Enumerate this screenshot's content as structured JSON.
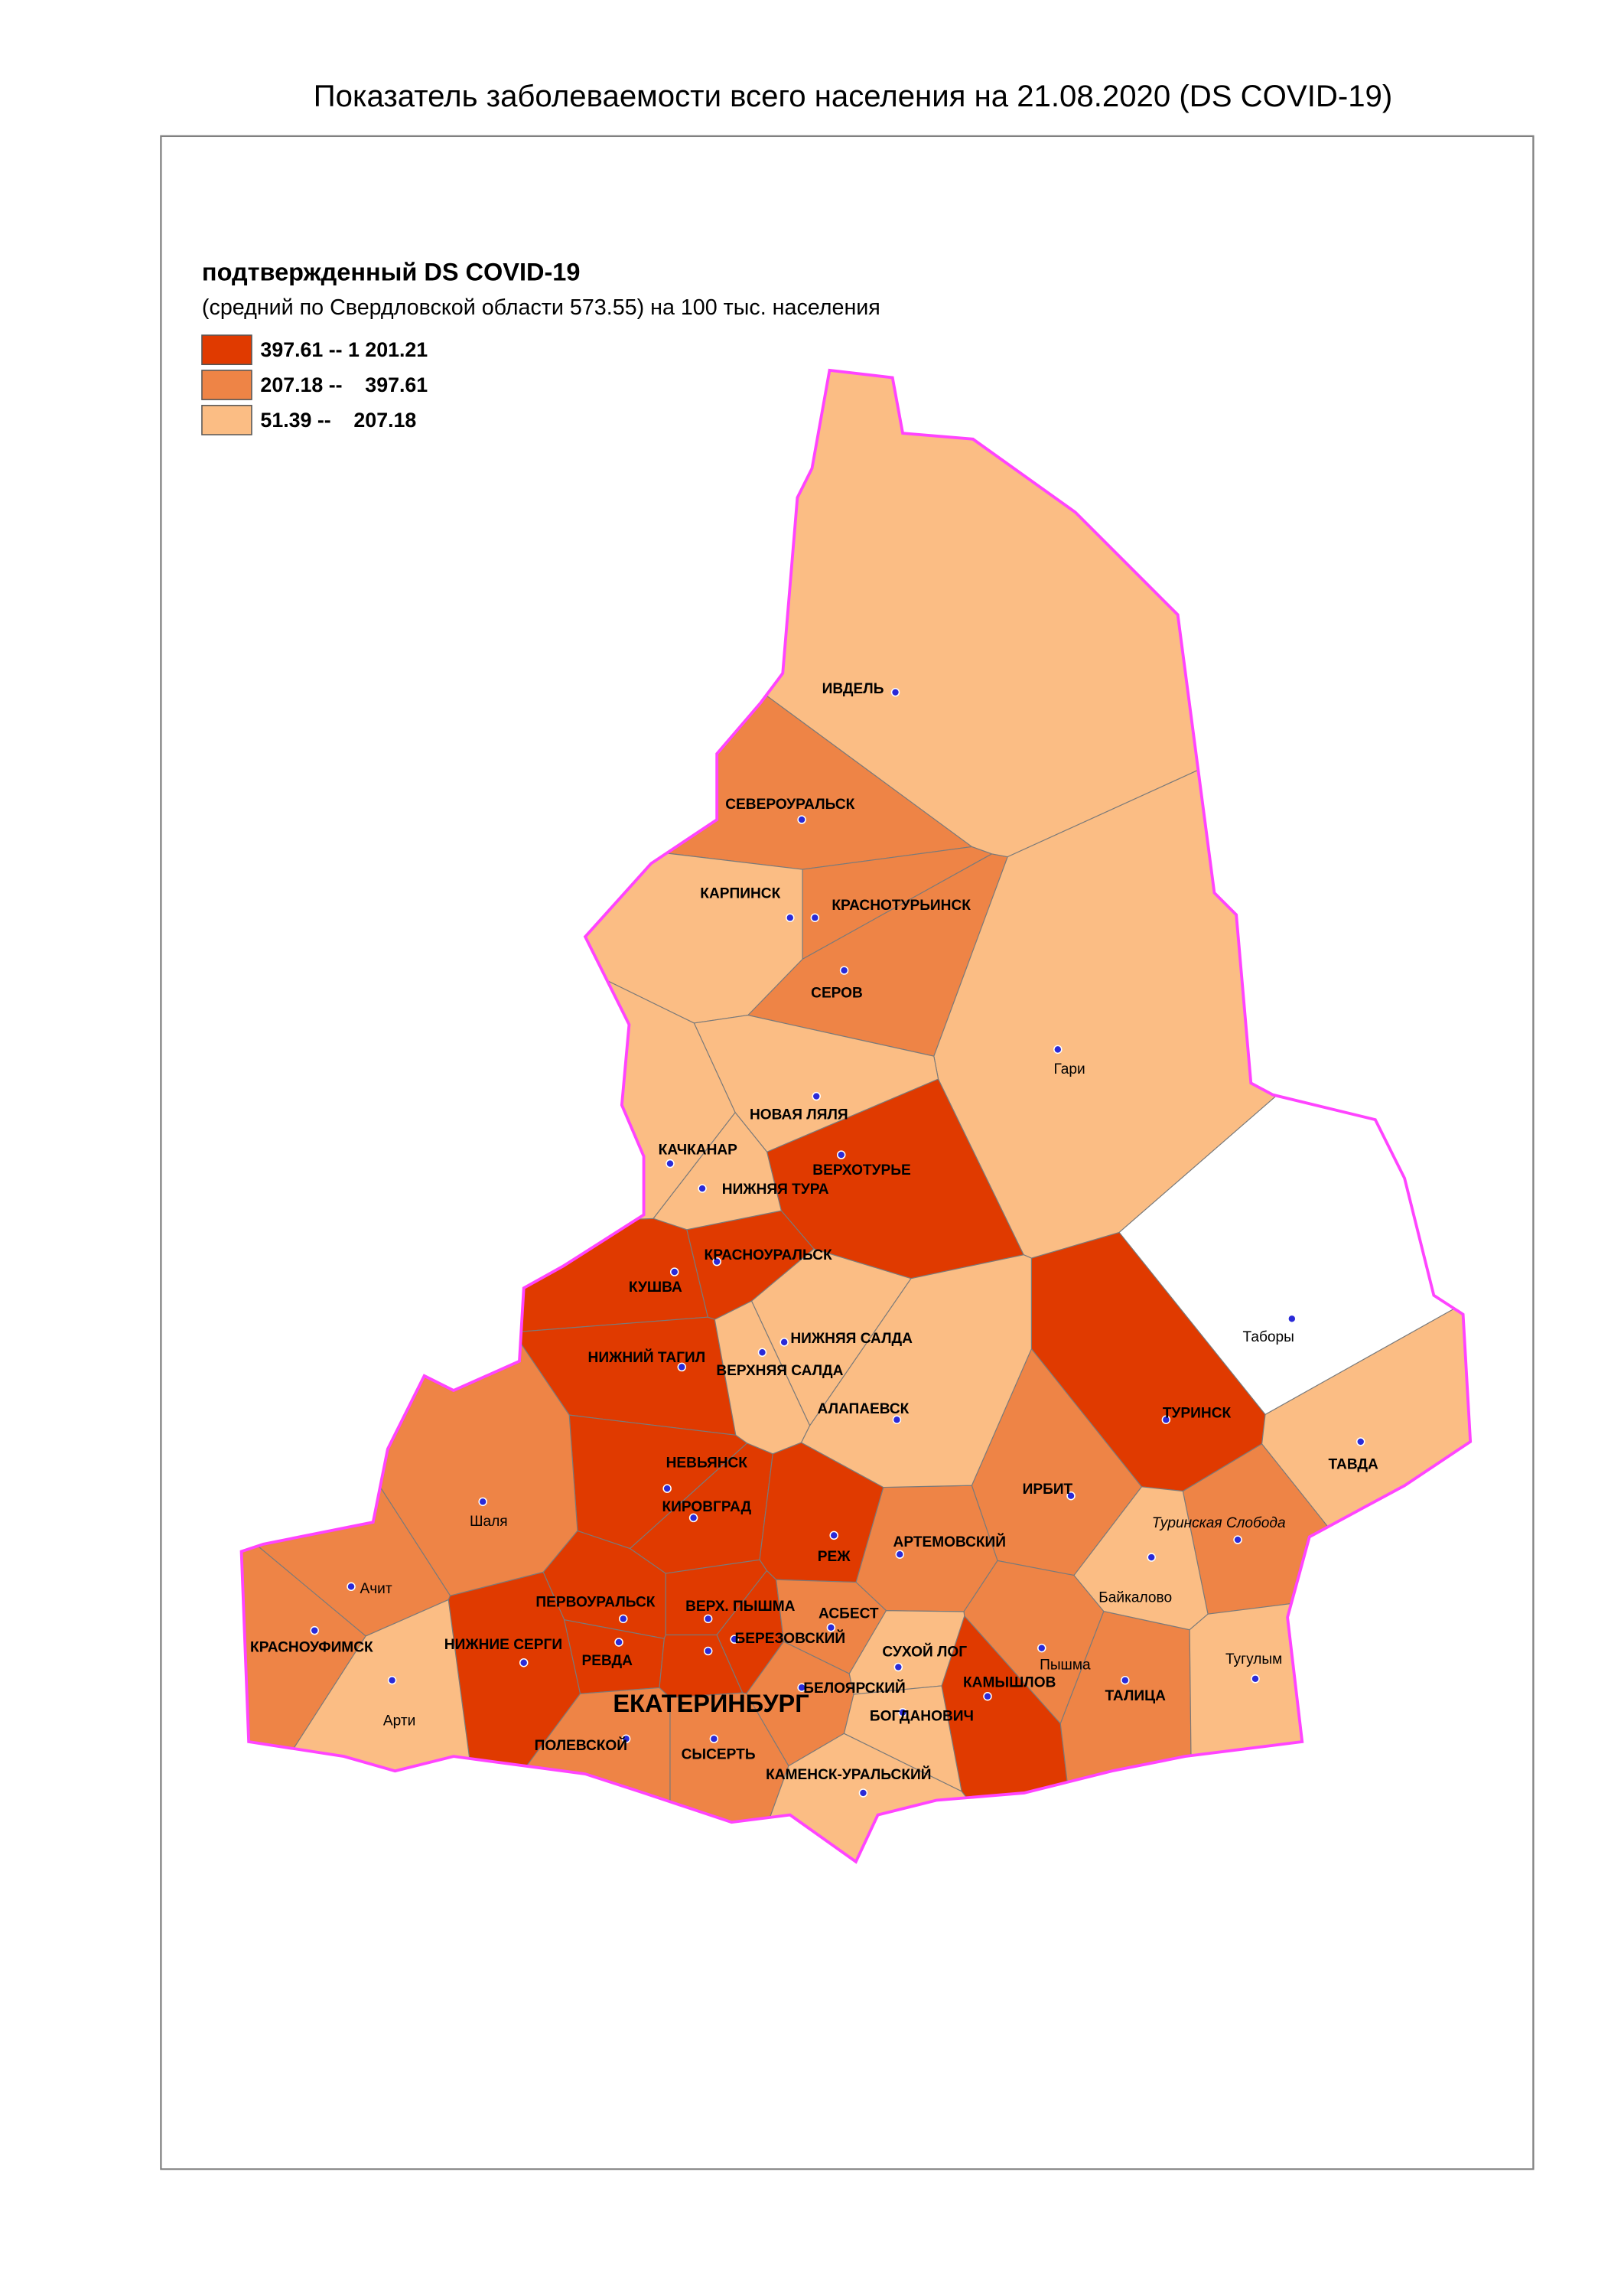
{
  "title": "Показатель заболеваемости всего населения  на 21.08.2020 (DS  COVID-19)",
  "legend": {
    "title": "подтвержденный DS  COVID-19",
    "subtitle": "(средний по Свердловской области 573.55) на 100 тыс. населения",
    "classes": [
      {
        "label": "397.61 -- 1 201.21",
        "color": "#e03a00",
        "places": [
          "ВЕРХОТУРЬЕ",
          "КРАСНОУРАЛЬСК",
          "КУШВА",
          "НИЖНИЙ ТАГИЛ",
          "ТУРИНСК",
          "НЕВЬЯНСК",
          "КИРОВГРАД",
          "РЕЖ",
          "ПЕРВОУРАЛЬСК",
          "ВЕРХ. ПЫШМА",
          "БЕРЕЗОВСКИЙ",
          "НИЖНИЕ СЕРГИ",
          "РЕВДА",
          "ЕКАТЕРИНБУРГ",
          "КАМЫШЛОВ"
        ]
      },
      {
        "label": "207.18 --    397.61",
        "color": "#ee8446",
        "places": [
          "СЕВЕРОУРАЛЬСК",
          "КРАСНОТУРЬИНСК",
          "СЕРОВ",
          "Шаля",
          "ИРБИТ",
          "Туринская Слобода",
          "АРТЕМОВСКИЙ",
          "Ачит",
          "КРАСНОУФИМСК",
          "АСБЕСТ",
          "Пышма",
          "ТАЛИЦА",
          "БЕЛОЯРСКИЙ",
          "ПОЛЕВСКОЙ",
          "СЫСЕРТЬ"
        ]
      },
      {
        "label": "51.39 --    207.18",
        "color": "#fbbd84",
        "places": [
          "ИВДЕЛЬ",
          "КАРПИНСК",
          "Гари",
          "НОВАЯ ЛЯЛЯ",
          "КАЧКАНАР",
          "НИЖНЯЯ ТУРА",
          "НИЖНЯЯ САЛДА",
          "ВЕРХНЯЯ САЛДА",
          "АЛАПАЕВСК",
          "ТАВДА",
          "Байкалово",
          "СУХОЙ ЛОГ",
          "Тугулым",
          "Арти",
          "БОГДАНОВИЧ",
          "КАМЕНСК-УРАЛЬСКИЙ"
        ]
      }
    ]
  },
  "unclassified": {
    "color": "#ffffff",
    "places": [
      "Таборы"
    ]
  }
}
